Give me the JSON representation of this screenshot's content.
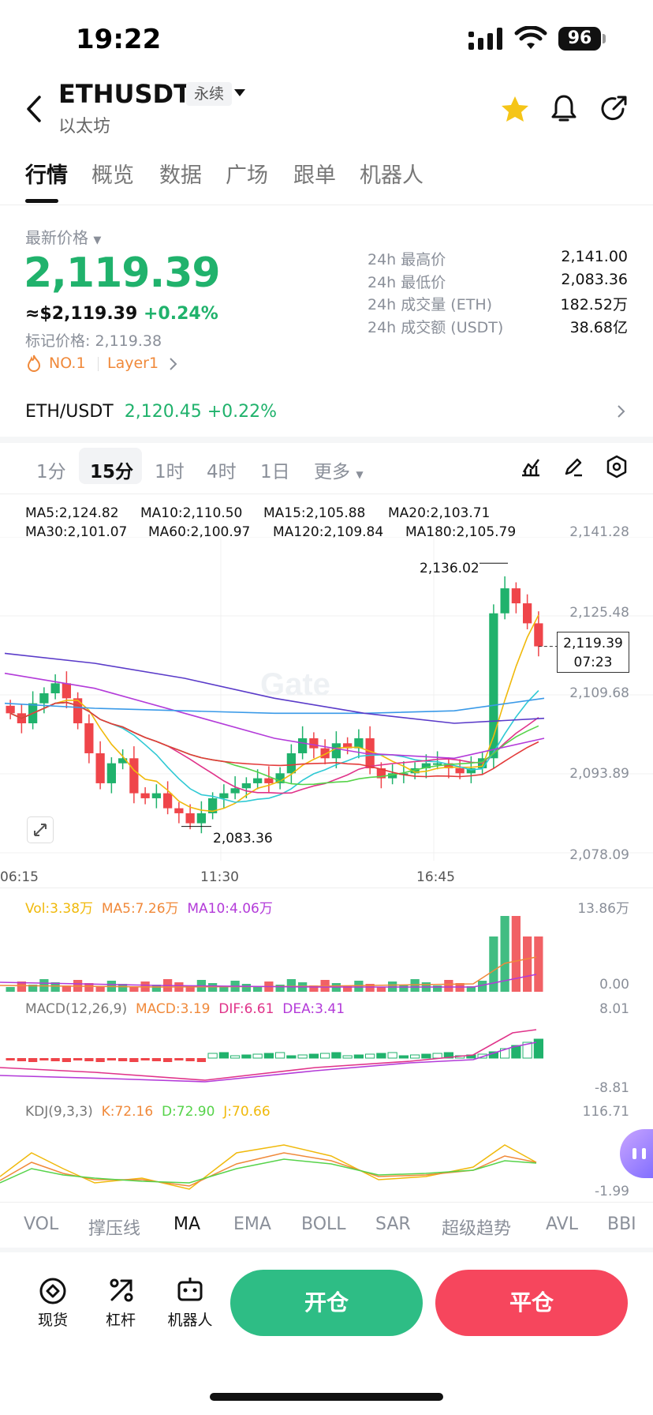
{
  "status_bar": {
    "time": "19:22",
    "battery": "96"
  },
  "header": {
    "symbol": "ETHUSDT",
    "contract_type": "永续",
    "subtitle": "以太坊"
  },
  "tabs": [
    {
      "label": "行情",
      "active": true
    },
    {
      "label": "概览"
    },
    {
      "label": "数据"
    },
    {
      "label": "广场"
    },
    {
      "label": "跟单"
    },
    {
      "label": "机器人"
    }
  ],
  "price": {
    "latest_label": "最新价格",
    "last": "2,119.39",
    "usd_approx": "≈$2,119.39",
    "change_pct": "+0.24%",
    "mark_label": "标记价格:",
    "mark_price": "2,119.38",
    "tag_rank": "NO.1",
    "tag_category": "Layer1"
  },
  "stats": [
    {
      "label": "24h 最高价",
      "value": "2,141.00"
    },
    {
      "label": "24h 最低价",
      "value": "2,083.36"
    },
    {
      "label": "24h 成交量 (ETH)",
      "value": "182.52万"
    },
    {
      "label": "24h 成交额 (USDT)",
      "value": "38.68亿"
    }
  ],
  "spot_pair": {
    "name": "ETH/USDT",
    "price": "2,120.45",
    "change": "+0.22%"
  },
  "intervals": [
    {
      "label": "1分"
    },
    {
      "label": "15分",
      "active": true
    },
    {
      "label": "1时"
    },
    {
      "label": "4时"
    },
    {
      "label": "1日"
    },
    {
      "label": "更多"
    }
  ],
  "ma_legend": [
    {
      "label": "MA5:2,124.82",
      "color": "#F0B90B"
    },
    {
      "label": "MA10:2,110.50",
      "color": "#2FC9D4"
    },
    {
      "label": "MA15:2,105.88",
      "color": "#E0338A"
    },
    {
      "label": "MA20:2,103.71",
      "color": "#56D34A"
    },
    {
      "label": "MA30:2,101.07",
      "color": "#E33A3A"
    },
    {
      "label": "MA60:2,100.97",
      "color": "#B33BD9"
    },
    {
      "label": "MA120:2,109.84",
      "color": "#3A9AE8"
    },
    {
      "label": "MA180:2,105.79",
      "color": "#5A3BC9"
    }
  ],
  "price_axis": [
    "2,141.28",
    "2,125.48",
    "2,109.68",
    "2,093.89",
    "2,078.09"
  ],
  "chart_annotations": {
    "high": "2,136.02",
    "low": "2,083.36",
    "current_price": "2,119.39",
    "countdown": "07:23"
  },
  "time_axis": [
    "06:15",
    "11:30",
    "16:45"
  ],
  "volume": {
    "vol_label": "Vol:3.38万",
    "ma5_label": "MA5:7.26万",
    "ma10_label": "MA10:4.06万",
    "axis_top": "13.86万",
    "axis_bottom": "0.00"
  },
  "macd": {
    "title": "MACD(12,26,9)",
    "macd_label": "MACD:3.19",
    "dif_label": "DIF:6.61",
    "dea_label": "DEA:3.41",
    "axis_top": "8.01",
    "axis_bottom": "-8.81"
  },
  "kdj": {
    "title": "KDJ(9,3,3)",
    "k_label": "K:72.16",
    "d_label": "D:72.90",
    "j_label": "J:70.66",
    "axis_top": "116.71",
    "axis_bottom": "-1.99"
  },
  "indicator_tabs": [
    {
      "label": "VOL"
    },
    {
      "label": "撑压线"
    },
    {
      "label": "MA",
      "active": true
    },
    {
      "label": "EMA"
    },
    {
      "label": "BOLL"
    },
    {
      "label": "SAR"
    },
    {
      "label": "超级趋势"
    },
    {
      "label": "AVL"
    },
    {
      "label": "BBI"
    }
  ],
  "bottom_bar": {
    "spot": "现货",
    "leverage": "杠杆",
    "bot": "机器人",
    "open": "开仓",
    "close": "平仓"
  },
  "colors": {
    "up": "#20B26C",
    "down": "#EF454A",
    "open_button": "#2EBD85",
    "close_button": "#F6465D"
  },
  "chart_data": {
    "type": "candlestick",
    "interval": "15分",
    "ohlc_close_approx": [
      2106,
      2104,
      2108,
      2110,
      2112,
      2109,
      2104,
      2098,
      2092,
      2096,
      2097,
      2090,
      2089,
      2090,
      2087,
      2086,
      2084,
      2086,
      2089,
      2090,
      2091,
      2092,
      2093,
      2092,
      2094,
      2098,
      2101,
      2099,
      2097,
      2100,
      2099,
      2101,
      2095,
      2093,
      2094,
      2094,
      2095,
      2096,
      2096,
      2095,
      2094,
      2095,
      2097,
      2126,
      2131,
      2128,
      2124,
      2119.39
    ],
    "high": 2136.02,
    "low": 2083.36,
    "ylim": [
      2078.09,
      2141.28
    ]
  }
}
